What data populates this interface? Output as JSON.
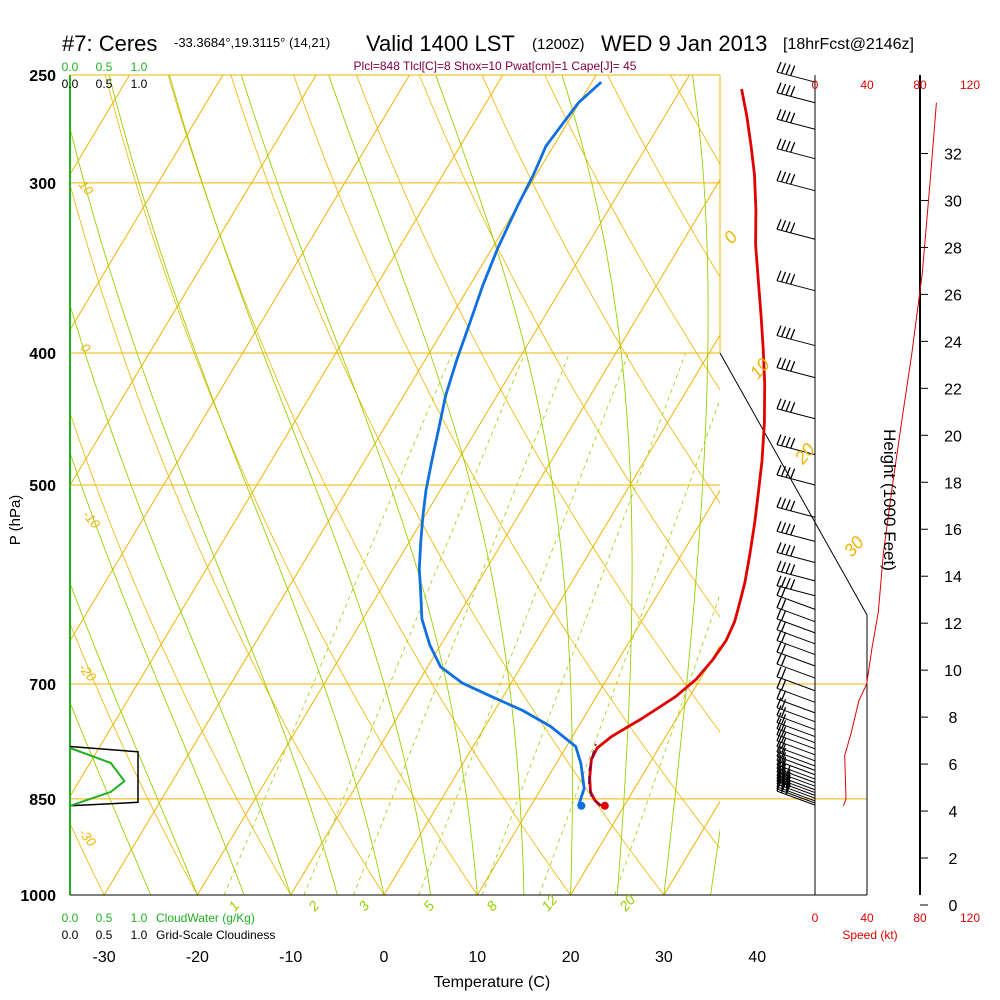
{
  "header": {
    "title_main": "#7: Ceres",
    "coords": "-33.3684°,19.3115° (14,21)",
    "valid": "Valid 1400 LST",
    "zulu": "(1200Z)",
    "date": "WED 9 Jan 2013",
    "forecast": "[18hrFcst@2146z]",
    "params": "Plcl=848 Tlcl[C]=8 Shox=10 Pwat[cm]=1 Cape[J]= 45"
  },
  "colors": {
    "temperature": "#e00000",
    "dewpoint": "#1070e0",
    "parcel": "#800040",
    "isobar_isotherm": "#f0b400",
    "adiabat": "#98d000",
    "cloud_water": "#20b020",
    "height_scale": "#e00000"
  },
  "chart_data": {
    "type": "line",
    "subtype": "skew-t log-p sounding",
    "xlabel": "Temperature (C)",
    "ylabel": "P (hPa)",
    "y2label": "Height (1000 Feet)",
    "x_ticks": [
      "-30",
      "-20",
      "-10",
      "0",
      "10",
      "20",
      "30",
      "40"
    ],
    "p_ticks": [
      "250",
      "300",
      "400",
      "500",
      "700",
      "850",
      "1000"
    ],
    "height_ticks": [
      "0",
      "2",
      "4",
      "6",
      "8",
      "10",
      "12",
      "14",
      "16",
      "18",
      "20",
      "22",
      "24",
      "26",
      "28",
      "30",
      "32"
    ],
    "speed_ticks": [
      "0",
      "40",
      "80",
      "120"
    ],
    "speed_label": "Speed (kt)",
    "cloud_ticks": [
      "0.0",
      "0.5",
      "1.0"
    ],
    "cloud_ticks_b": [
      "0.0",
      "0.5",
      "1.0"
    ],
    "cloud_water_label": "CloudWater (g/Kg)",
    "cloudiness_label": "Grid-Scale Cloudiness",
    "adiabat_labels": [
      "10",
      "0",
      "-10",
      "-20",
      "-30",
      "0",
      "10",
      "20",
      "30"
    ],
    "mixing_ratio_labels": [
      "1",
      "2",
      "3",
      "5",
      "8",
      "12",
      "20"
    ],
    "series": [
      {
        "name": "Temperature",
        "points": [
          [
            17.5,
            860
          ],
          [
            16.5,
            852
          ],
          [
            15.5,
            840
          ],
          [
            14.5,
            820
          ],
          [
            13.5,
            795
          ],
          [
            13.4,
            780
          ],
          [
            14.2,
            765
          ],
          [
            16.3,
            742
          ],
          [
            18.5,
            715
          ],
          [
            19.6,
            694
          ],
          [
            20.1,
            672
          ],
          [
            20.3,
            650
          ],
          [
            20.0,
            630
          ],
          [
            19.5,
            615
          ],
          [
            18.6,
            590
          ],
          [
            17.3,
            562
          ],
          [
            15.8,
            533
          ],
          [
            14.4,
            509
          ],
          [
            12.6,
            480
          ],
          [
            10.4,
            450
          ],
          [
            7.9,
            421
          ],
          [
            5.5,
            397
          ],
          [
            3.1,
            375
          ],
          [
            0.5,
            353
          ],
          [
            -2.0,
            333
          ],
          [
            -4.2,
            314
          ],
          [
            -6.6,
            296
          ],
          [
            -8.8,
            282
          ],
          [
            -11.2,
            268
          ],
          [
            -13.5,
            256
          ]
        ]
      },
      {
        "name": "Dewpoint",
        "points": [
          [
            15.1,
            860
          ],
          [
            14.9,
            850
          ],
          [
            14.6,
            835
          ],
          [
            12.6,
            800
          ],
          [
            11.0,
            778
          ],
          [
            7.0,
            752
          ],
          [
            3.0,
            732
          ],
          [
            -1.5,
            714
          ],
          [
            -5.2,
            699
          ],
          [
            -8.6,
            680
          ],
          [
            -11.2,
            655
          ],
          [
            -13.7,
            627
          ],
          [
            -15.5,
            600
          ],
          [
            -17.2,
            576
          ],
          [
            -18.8,
            550
          ],
          [
            -20.2,
            527
          ],
          [
            -21.5,
            505
          ],
          [
            -22.8,
            480
          ],
          [
            -24.1,
            455
          ],
          [
            -25.5,
            430
          ],
          [
            -26.6,
            405
          ],
          [
            -27.6,
            380
          ],
          [
            -28.6,
            357
          ],
          [
            -29.4,
            335
          ],
          [
            -30.0,
            312
          ],
          [
            -30.3,
            296
          ],
          [
            -30.8,
            282
          ],
          [
            -30.4,
            270
          ],
          [
            -30.1,
            262
          ],
          [
            -29.0,
            253
          ]
        ]
      },
      {
        "name": "Parcel",
        "points": [
          [
            17.5,
            860
          ],
          [
            16.0,
            848
          ],
          [
            14.9,
            830
          ],
          [
            14.0,
            810
          ],
          [
            13.4,
            790
          ],
          [
            13.0,
            775
          ]
        ]
      }
    ],
    "cloud_water_g_per_kg": [
      [
        0.0,
        860
      ],
      [
        0.6,
        840
      ],
      [
        0.8,
        825
      ],
      [
        0.6,
        800
      ],
      [
        0.0,
        780
      ]
    ],
    "cloudiness_fraction": [
      [
        0.0,
        860
      ],
      [
        1.0,
        855
      ],
      [
        1.0,
        785
      ],
      [
        0.0,
        778
      ]
    ],
    "height_trace_kt": [
      [
        22,
        860
      ],
      [
        24,
        850
      ],
      [
        23,
        790
      ],
      [
        28,
        760
      ],
      [
        34,
        720
      ],
      [
        40,
        700
      ],
      [
        44,
        660
      ],
      [
        49,
        620
      ],
      [
        53,
        560
      ],
      [
        60,
        500
      ],
      [
        67,
        450
      ],
      [
        75,
        400
      ],
      [
        83,
        350
      ],
      [
        89,
        300
      ],
      [
        94,
        262
      ]
    ],
    "wind_barb_pressures": [
      859,
      856,
      853,
      849,
      845,
      841,
      837,
      832,
      827,
      822,
      816,
      810,
      804,
      797,
      789,
      781,
      773,
      765,
      756,
      746,
      735,
      722,
      708,
      693,
      679,
      666,
      654,
      642,
      630,
      617,
      603,
      588,
      570,
      550,
      528,
      500,
      475,
      447,
      417,
      395,
      360,
      330,
      304,
      288,
      274,
      262,
      253
    ]
  }
}
